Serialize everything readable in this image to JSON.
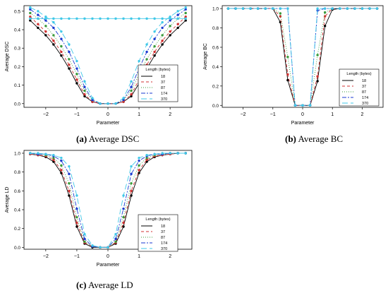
{
  "captions": [
    {
      "letter": "(a)",
      "text": "Average DSC"
    },
    {
      "letter": "(b)",
      "text": "Average BC"
    },
    {
      "letter": "(c)",
      "text": "Average LD"
    }
  ],
  "chart_data": [
    {
      "type": "line",
      "title": "",
      "xlabel": "Parameter",
      "ylabel": "Average DSC",
      "xlim": [
        -2.7,
        2.7
      ],
      "ylim": [
        -0.02,
        0.53
      ],
      "xticks": [
        -2,
        -1,
        0,
        1,
        2
      ],
      "yticks": [
        0.0,
        0.1,
        0.2,
        0.3,
        0.4,
        0.5
      ],
      "xtick_labels": [
        "−2",
        "−1",
        "0",
        "1",
        "2"
      ],
      "ytick_labels": [
        "0.0",
        "0.1",
        "0.2",
        "0.3",
        "0.4",
        "0.5"
      ],
      "grid": false,
      "legend": {
        "title": "Length (bytes)",
        "placement": "right-middle"
      },
      "x": [
        -2.5,
        -2.25,
        -2.0,
        -1.75,
        -1.5,
        -1.25,
        -1.0,
        -0.75,
        -0.5,
        -0.25,
        0.0,
        0.25,
        0.5,
        0.75,
        1.0,
        1.25,
        1.5,
        1.75,
        2.0,
        2.25,
        2.5
      ],
      "series": [
        {
          "name": "18",
          "color": "#000000",
          "dash": "",
          "values": [
            0.45,
            0.41,
            0.37,
            0.32,
            0.26,
            0.19,
            0.11,
            0.04,
            0.01,
            0.0,
            0.0,
            0.0,
            0.01,
            0.04,
            0.11,
            0.19,
            0.26,
            0.32,
            0.37,
            0.41,
            0.45
          ]
        },
        {
          "name": "37",
          "color": "#d03030",
          "dash": "4,3",
          "values": [
            0.47,
            0.43,
            0.39,
            0.34,
            0.28,
            0.21,
            0.13,
            0.05,
            0.01,
            0.0,
            0.0,
            0.0,
            0.01,
            0.05,
            0.13,
            0.21,
            0.28,
            0.34,
            0.39,
            0.43,
            0.47
          ]
        },
        {
          "name": "87",
          "color": "#3a9a3a",
          "dash": "1,2",
          "values": [
            0.49,
            0.46,
            0.42,
            0.37,
            0.31,
            0.24,
            0.16,
            0.07,
            0.02,
            0.0,
            0.0,
            0.0,
            0.02,
            0.07,
            0.16,
            0.24,
            0.31,
            0.37,
            0.42,
            0.46,
            0.49
          ]
        },
        {
          "name": "174",
          "color": "#1a3ad0",
          "dash": "6,2,2,2",
          "values": [
            0.51,
            0.48,
            0.45,
            0.41,
            0.35,
            0.28,
            0.19,
            0.09,
            0.02,
            0.0,
            0.0,
            0.0,
            0.02,
            0.09,
            0.19,
            0.28,
            0.35,
            0.41,
            0.45,
            0.48,
            0.51
          ]
        },
        {
          "name": "370",
          "color": "#40c8e8",
          "dash": "8,4",
          "values": [
            0.52,
            0.5,
            0.47,
            0.44,
            0.39,
            0.32,
            0.23,
            0.12,
            0.03,
            0.0,
            0.0,
            0.0,
            0.03,
            0.12,
            0.23,
            0.32,
            0.39,
            0.44,
            0.47,
            0.5,
            0.52
          ]
        },
        {
          "name": "",
          "color": "#40c8e8",
          "dash": "",
          "values": [
            0.46,
            0.46,
            0.46,
            0.46,
            0.46,
            0.46,
            0.46,
            0.46,
            0.46,
            0.46,
            0.46,
            0.46,
            0.46,
            0.46,
            0.46,
            0.46,
            0.46,
            0.46,
            0.46,
            0.46,
            0.46
          ]
        }
      ]
    },
    {
      "type": "line",
      "title": "",
      "xlabel": "Parameter",
      "ylabel": "Average BC",
      "xlim": [
        -2.7,
        2.7
      ],
      "ylim": [
        -0.02,
        1.03
      ],
      "xticks": [
        -2,
        -1,
        0,
        1,
        2
      ],
      "yticks": [
        0.0,
        0.2,
        0.4,
        0.6,
        0.8,
        1.0
      ],
      "xtick_labels": [
        "−2",
        "−1",
        "0",
        "1",
        "2"
      ],
      "ytick_labels": [
        "0.0",
        "0.2",
        "0.4",
        "0.6",
        "0.8",
        "1.0"
      ],
      "grid": false,
      "legend": {
        "title": "Length (bytes)",
        "placement": "bottom-right"
      },
      "x": [
        -2.5,
        -2.25,
        -2.0,
        -1.75,
        -1.5,
        -1.25,
        -1.0,
        -0.75,
        -0.5,
        -0.25,
        0.0,
        0.25,
        0.5,
        0.75,
        1.0,
        1.25,
        1.5,
        1.75,
        2.0,
        2.25,
        2.5
      ],
      "series": [
        {
          "name": "18",
          "color": "#000000",
          "dash": "",
          "values": [
            1.0,
            1.0,
            1.0,
            1.0,
            1.0,
            1.0,
            1.0,
            0.86,
            0.26,
            0.0,
            0.0,
            0.0,
            0.25,
            0.82,
            0.99,
            1.0,
            1.0,
            1.0,
            1.0,
            1.0,
            1.0
          ]
        },
        {
          "name": "37",
          "color": "#d03030",
          "dash": "4,3",
          "values": [
            1.0,
            1.0,
            1.0,
            1.0,
            1.0,
            1.0,
            1.0,
            0.92,
            0.32,
            0.0,
            0.0,
            0.0,
            0.3,
            0.92,
            1.0,
            1.0,
            1.0,
            1.0,
            1.0,
            1.0,
            1.0
          ]
        },
        {
          "name": "87",
          "color": "#3a9a3a",
          "dash": "1,2",
          "values": [
            1.0,
            1.0,
            1.0,
            1.0,
            1.0,
            1.0,
            1.0,
            0.95,
            0.5,
            0.0,
            0.0,
            0.0,
            0.52,
            0.96,
            1.0,
            1.0,
            1.0,
            1.0,
            1.0,
            1.0,
            1.0
          ]
        },
        {
          "name": "174",
          "color": "#1a3ad0",
          "dash": "6,2,2,2",
          "values": [
            1.0,
            1.0,
            1.0,
            1.0,
            1.0,
            1.0,
            1.0,
            1.0,
            1.0,
            0.0,
            0.0,
            0.0,
            0.98,
            1.0,
            1.0,
            1.0,
            1.0,
            1.0,
            1.0,
            1.0,
            1.0
          ]
        },
        {
          "name": "370",
          "color": "#40c8e8",
          "dash": "8,4",
          "values": [
            1.0,
            1.0,
            1.0,
            1.0,
            1.0,
            1.0,
            1.0,
            1.0,
            1.0,
            0.0,
            0.0,
            0.0,
            1.0,
            1.0,
            1.0,
            1.0,
            1.0,
            1.0,
            1.0,
            1.0,
            1.0
          ]
        }
      ]
    },
    {
      "type": "line",
      "title": "",
      "xlabel": "Parameter",
      "ylabel": "Average LD",
      "xlim": [
        -2.7,
        2.7
      ],
      "ylim": [
        -0.02,
        1.03
      ],
      "xticks": [
        -2,
        -1,
        0,
        1,
        2
      ],
      "yticks": [
        0.0,
        0.2,
        0.4,
        0.6,
        0.8,
        1.0
      ],
      "xtick_labels": [
        "−2",
        "−1",
        "0",
        "1",
        "2"
      ],
      "ytick_labels": [
        "0.0",
        "0.2",
        "0.4",
        "0.6",
        "0.8",
        "1.0"
      ],
      "grid": false,
      "legend": {
        "title": "Length (bytes)",
        "placement": "right-middle"
      },
      "x": [
        -2.5,
        -2.25,
        -2.0,
        -1.75,
        -1.5,
        -1.25,
        -1.0,
        -0.75,
        -0.5,
        -0.25,
        0.0,
        0.25,
        0.5,
        0.75,
        1.0,
        1.25,
        1.5,
        1.75,
        2.0,
        2.25,
        2.5
      ],
      "series": [
        {
          "name": "18",
          "color": "#000000",
          "dash": "",
          "values": [
            0.99,
            0.98,
            0.96,
            0.91,
            0.79,
            0.55,
            0.22,
            0.04,
            0.0,
            0.0,
            0.0,
            0.04,
            0.22,
            0.55,
            0.79,
            0.91,
            0.96,
            0.98,
            0.99,
            1.0,
            1.0
          ]
        },
        {
          "name": "37",
          "color": "#d03030",
          "dash": "4,3",
          "values": [
            0.99,
            0.98,
            0.97,
            0.93,
            0.82,
            0.6,
            0.26,
            0.05,
            0.01,
            0.0,
            0.0,
            0.05,
            0.26,
            0.6,
            0.82,
            0.93,
            0.97,
            0.98,
            0.99,
            1.0,
            1.0
          ]
        },
        {
          "name": "87",
          "color": "#3a9a3a",
          "dash": "1,2",
          "values": [
            1.0,
            0.99,
            0.98,
            0.95,
            0.87,
            0.68,
            0.32,
            0.06,
            0.01,
            0.0,
            0.0,
            0.06,
            0.32,
            0.68,
            0.87,
            0.95,
            0.98,
            0.99,
            1.0,
            1.0,
            1.0
          ]
        },
        {
          "name": "174",
          "color": "#1a3ad0",
          "dash": "6,2,2,2",
          "values": [
            1.0,
            0.99,
            0.99,
            0.97,
            0.92,
            0.78,
            0.41,
            0.09,
            0.01,
            0.0,
            0.0,
            0.09,
            0.41,
            0.78,
            0.92,
            0.97,
            0.99,
            0.99,
            1.0,
            1.0,
            1.0
          ]
        },
        {
          "name": "370",
          "color": "#40c8e8",
          "dash": "8,4",
          "values": [
            1.0,
            1.0,
            0.99,
            0.98,
            0.95,
            0.86,
            0.55,
            0.14,
            0.02,
            0.0,
            0.0,
            0.14,
            0.55,
            0.86,
            0.95,
            0.98,
            0.99,
            1.0,
            1.0,
            1.0,
            1.0
          ]
        }
      ]
    }
  ]
}
